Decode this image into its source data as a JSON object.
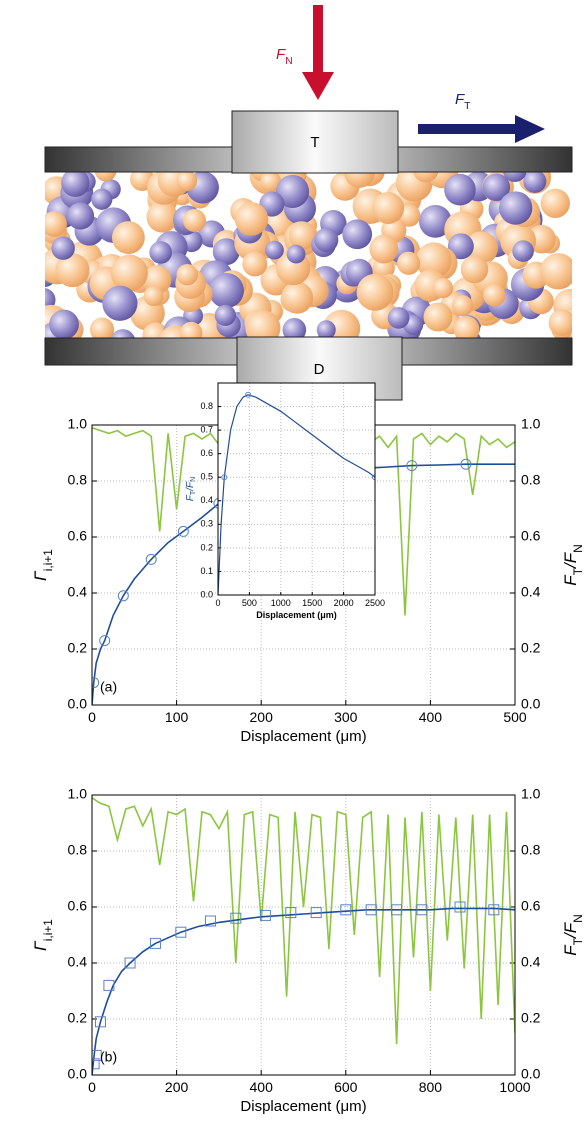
{
  "diagram": {
    "normal_force": [
      {
        "text": "F"
      },
      {
        "text": "N",
        "sub": true
      }
    ],
    "tangential_force": [
      {
        "text": "F"
      },
      {
        "text": "T",
        "sub": true
      }
    ],
    "top_block": "T",
    "bottom_block": "D"
  },
  "chart_data": [
    {
      "type": "line",
      "label": "(a)",
      "xlabel": "Displacement (μm)",
      "ylabel": [
        {
          "text": "Γ"
        },
        {
          "text": "i,i+1",
          "sub": true
        }
      ],
      "y2label": [
        {
          "text": "F"
        },
        {
          "text": "T",
          "sub": true
        },
        {
          "text": "/F"
        },
        {
          "text": "N",
          "sub": true
        }
      ],
      "xlim": [
        0,
        500
      ],
      "xticks": [
        0,
        100,
        200,
        300,
        400,
        500
      ],
      "ylim": [
        0,
        1
      ],
      "yticks": [
        {
          "value": 0,
          "label": "0.0"
        },
        {
          "value": 0.2,
          "label": "0.2"
        },
        {
          "value": 0.4,
          "label": "0.4"
        },
        {
          "value": 0.6,
          "label": "0.6"
        },
        {
          "value": 0.8,
          "label": "0.8"
        },
        {
          "value": 1,
          "label": "1.0"
        }
      ],
      "y2lim": [
        0,
        1
      ],
      "y2ticks": [
        {
          "value": 0,
          "label": "0.0"
        },
        {
          "value": 0.2,
          "label": "0.2"
        },
        {
          "value": 0.4,
          "label": "0.4"
        },
        {
          "value": 0.6,
          "label": "0.6"
        },
        {
          "value": 0.8,
          "label": "0.8"
        },
        {
          "value": 1,
          "label": "1.0"
        }
      ],
      "grid": true,
      "series": [
        {
          "color": "#8cc63f",
          "style": "line",
          "x": [
            0,
            10,
            20,
            30,
            40,
            50,
            60,
            70,
            80,
            90,
            100,
            110,
            120,
            130,
            140,
            150,
            160,
            170,
            180,
            190,
            200,
            210,
            220,
            230,
            240,
            250,
            260,
            270,
            280,
            290,
            300,
            310,
            320,
            330,
            340,
            350,
            360,
            370,
            380,
            390,
            400,
            410,
            420,
            430,
            440,
            450,
            460,
            470,
            480,
            490,
            500
          ],
          "values": [
            0.99,
            0.98,
            0.97,
            0.98,
            0.96,
            0.97,
            0.98,
            0.96,
            0.62,
            0.97,
            0.7,
            0.96,
            0.97,
            0.95,
            0.97,
            0.93,
            0.97,
            0.96,
            0.94,
            0.97,
            0.96,
            0.95,
            0.97,
            0.93,
            0.96,
            0.97,
            0.94,
            0.96,
            0.97,
            0.93,
            0.96,
            0.95,
            0.97,
            0.94,
            0.96,
            0.92,
            0.96,
            0.32,
            0.95,
            0.97,
            0.93,
            0.96,
            0.94,
            0.97,
            0.95,
            0.75,
            0.96,
            0.93,
            0.95,
            0.92,
            0.94
          ]
        },
        {
          "color": "#1f4e99",
          "style": "line",
          "axis": "y2",
          "x": [
            0,
            2,
            5,
            10,
            15,
            25,
            37,
            50,
            70,
            90,
            108,
            130,
            150,
            175,
            200,
            230,
            258,
            290,
            318,
            350,
            378,
            410,
            442,
            470,
            500
          ],
          "values": [
            0,
            0.08,
            0.15,
            0.2,
            0.23,
            0.32,
            0.39,
            0.45,
            0.52,
            0.58,
            0.62,
            0.67,
            0.72,
            0.75,
            0.78,
            0.8,
            0.82,
            0.835,
            0.845,
            0.85,
            0.855,
            0.857,
            0.86,
            0.86,
            0.86
          ]
        },
        {
          "color": "#5b83c4",
          "style": "circle",
          "axis": "y2",
          "x": [
            2,
            15,
            37,
            70,
            108,
            150,
            200,
            258,
            318,
            378,
            442
          ],
          "values": [
            0.08,
            0.23,
            0.39,
            0.52,
            0.62,
            0.72,
            0.78,
            0.82,
            0.845,
            0.855,
            0.86
          ]
        }
      ]
    },
    {
      "type": "line",
      "xlabel": "Displacement (μm)",
      "ylabel": [
        {
          "text": "F"
        },
        {
          "text": "T",
          "sub": true
        },
        {
          "text": "/F"
        },
        {
          "text": "N",
          "sub": true
        }
      ],
      "xlim": [
        0,
        2500
      ],
      "xticks": [
        0,
        500,
        1000,
        1500,
        2000,
        2500
      ],
      "ylim": [
        0,
        0.9
      ],
      "yticks": [
        {
          "value": 0,
          "label": "0.0"
        },
        {
          "value": 0.1,
          "label": "0.1"
        },
        {
          "value": 0.2,
          "label": "0.2"
        },
        {
          "value": 0.3,
          "label": "0.3"
        },
        {
          "value": 0.4,
          "label": "0.4"
        },
        {
          "value": 0.5,
          "label": "0.5"
        },
        {
          "value": 0.6,
          "label": "0.6"
        },
        {
          "value": 0.7,
          "label": "0.7"
        },
        {
          "value": 0.8,
          "label": "0.8"
        }
      ],
      "grid": true,
      "series": [
        {
          "color": "#1f4e99",
          "style": "line",
          "x": [
            0,
            50,
            100,
            200,
            300,
            400,
            480,
            600,
            800,
            1000,
            1200,
            1400,
            1600,
            1800,
            2000,
            2200,
            2400,
            2500
          ],
          "values": [
            0,
            0.3,
            0.5,
            0.7,
            0.8,
            0.84,
            0.85,
            0.84,
            0.81,
            0.78,
            0.74,
            0.7,
            0.66,
            0.62,
            0.58,
            0.55,
            0.52,
            0.5
          ]
        },
        {
          "color": "#5b83c4",
          "style": "circle",
          "x": [
            100,
            480,
            2500
          ],
          "values": [
            0.5,
            0.85,
            0.5
          ]
        }
      ]
    },
    {
      "type": "line",
      "label": "(b)",
      "xlabel": "Displacement (μm)",
      "ylabel": [
        {
          "text": "Γ"
        },
        {
          "text": "i,i+1",
          "sub": true
        }
      ],
      "y2label": [
        {
          "text": "F"
        },
        {
          "text": "T",
          "sub": true
        },
        {
          "text": "/F"
        },
        {
          "text": "N",
          "sub": true
        }
      ],
      "xlim": [
        0,
        1000
      ],
      "xticks": [
        0,
        200,
        400,
        600,
        800,
        1000
      ],
      "ylim": [
        0,
        1
      ],
      "yticks": [
        {
          "value": 0,
          "label": "0.0"
        },
        {
          "value": 0.2,
          "label": "0.2"
        },
        {
          "value": 0.4,
          "label": "0.4"
        },
        {
          "value": 0.6,
          "label": "0.6"
        },
        {
          "value": 0.8,
          "label": "0.8"
        },
        {
          "value": 1,
          "label": "1.0"
        }
      ],
      "y2lim": [
        0,
        1
      ],
      "y2ticks": [
        {
          "value": 0,
          "label": "0.0"
        },
        {
          "value": 0.2,
          "label": "0.2"
        },
        {
          "value": 0.4,
          "label": "0.4"
        },
        {
          "value": 0.6,
          "label": "0.6"
        },
        {
          "value": 0.8,
          "label": "0.8"
        },
        {
          "value": 1,
          "label": "1.0"
        }
      ],
      "grid": true,
      "series": [
        {
          "color": "#8cc63f",
          "style": "line",
          "x": [
            0,
            20,
            40,
            60,
            80,
            100,
            120,
            140,
            160,
            180,
            200,
            220,
            240,
            260,
            280,
            300,
            320,
            340,
            360,
            380,
            400,
            420,
            440,
            460,
            480,
            500,
            520,
            540,
            560,
            580,
            600,
            620,
            640,
            660,
            680,
            700,
            720,
            740,
            760,
            780,
            800,
            820,
            840,
            860,
            880,
            900,
            920,
            940,
            960,
            980,
            1000
          ],
          "values": [
            0.99,
            0.97,
            0.96,
            0.84,
            0.95,
            0.96,
            0.89,
            0.95,
            0.75,
            0.94,
            0.93,
            0.95,
            0.62,
            0.94,
            0.93,
            0.88,
            0.94,
            0.4,
            0.93,
            0.94,
            0.55,
            0.93,
            0.92,
            0.28,
            0.94,
            0.6,
            0.93,
            0.92,
            0.45,
            0.94,
            0.93,
            0.5,
            0.92,
            0.94,
            0.35,
            0.93,
            0.11,
            0.92,
            0.42,
            0.94,
            0.3,
            0.93,
            0.48,
            0.92,
            0.38,
            0.93,
            0.2,
            0.93,
            0.25,
            0.94,
            0.15
          ]
        },
        {
          "color": "#1f4e99",
          "style": "line",
          "axis": "y2",
          "x": [
            0,
            5,
            10,
            20,
            35,
            50,
            70,
            90,
            120,
            150,
            180,
            210,
            250,
            300,
            350,
            400,
            450,
            500,
            550,
            600,
            650,
            700,
            750,
            800,
            850,
            900,
            950,
            1000
          ],
          "values": [
            0,
            0.07,
            0.13,
            0.19,
            0.26,
            0.32,
            0.37,
            0.4,
            0.44,
            0.47,
            0.49,
            0.51,
            0.53,
            0.545,
            0.555,
            0.565,
            0.57,
            0.575,
            0.58,
            0.585,
            0.59,
            0.59,
            0.59,
            0.59,
            0.595,
            0.595,
            0.595,
            0.59
          ]
        },
        {
          "color": "#5b83c4",
          "style": "square",
          "axis": "y2",
          "x": [
            5,
            10,
            20,
            40,
            90,
            150,
            210,
            280,
            340,
            410,
            470,
            530,
            600,
            660,
            720,
            780,
            870,
            950
          ],
          "values": [
            0.04,
            0.07,
            0.19,
            0.32,
            0.4,
            0.47,
            0.51,
            0.55,
            0.56,
            0.57,
            0.58,
            0.58,
            0.59,
            0.59,
            0.59,
            0.59,
            0.6,
            0.59
          ]
        }
      ]
    }
  ]
}
